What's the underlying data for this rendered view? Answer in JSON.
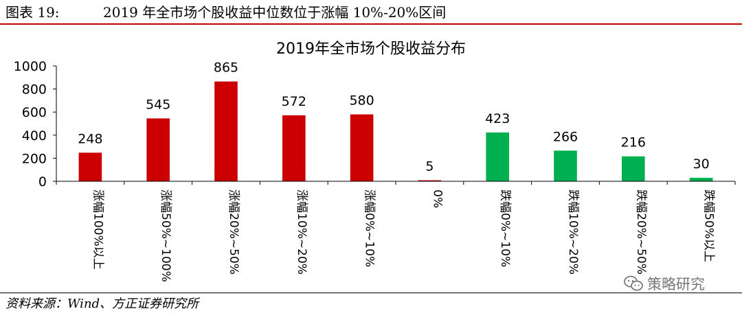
{
  "header": {
    "figure_label": "图表 19:",
    "figure_title": "2019 年全市场个股收益中位数位于涨幅 10%-20%区间"
  },
  "chart_data": {
    "type": "bar",
    "title": "2019年全市场个股收益分布",
    "categories": [
      "涨幅100%以上",
      "涨幅50%~100%",
      "涨幅20%~50%",
      "涨幅10%~20%",
      "涨幅0%~10%",
      "0%",
      "跌幅0%~10%",
      "跌幅10%~20%",
      "跌幅20%~50%",
      "跌幅50%以上"
    ],
    "values": [
      248,
      545,
      865,
      572,
      580,
      5,
      423,
      266,
      216,
      30
    ],
    "colors": [
      "#cc0000",
      "#cc0000",
      "#cc0000",
      "#cc0000",
      "#cc0000",
      "#cc0000",
      "#00b050",
      "#00b050",
      "#00b050",
      "#00b050"
    ],
    "yticks": [
      "0",
      "200",
      "400",
      "600",
      "800",
      "1000"
    ],
    "ylim": [
      0,
      1000
    ],
    "xlabel": "",
    "ylabel": "",
    "grid": false,
    "legend": false,
    "data_labels": true
  },
  "footer": {
    "source": "资料来源：Wind、方正证券研究所"
  },
  "watermark": {
    "icon": "wechat-icon",
    "text": "策略研究"
  }
}
